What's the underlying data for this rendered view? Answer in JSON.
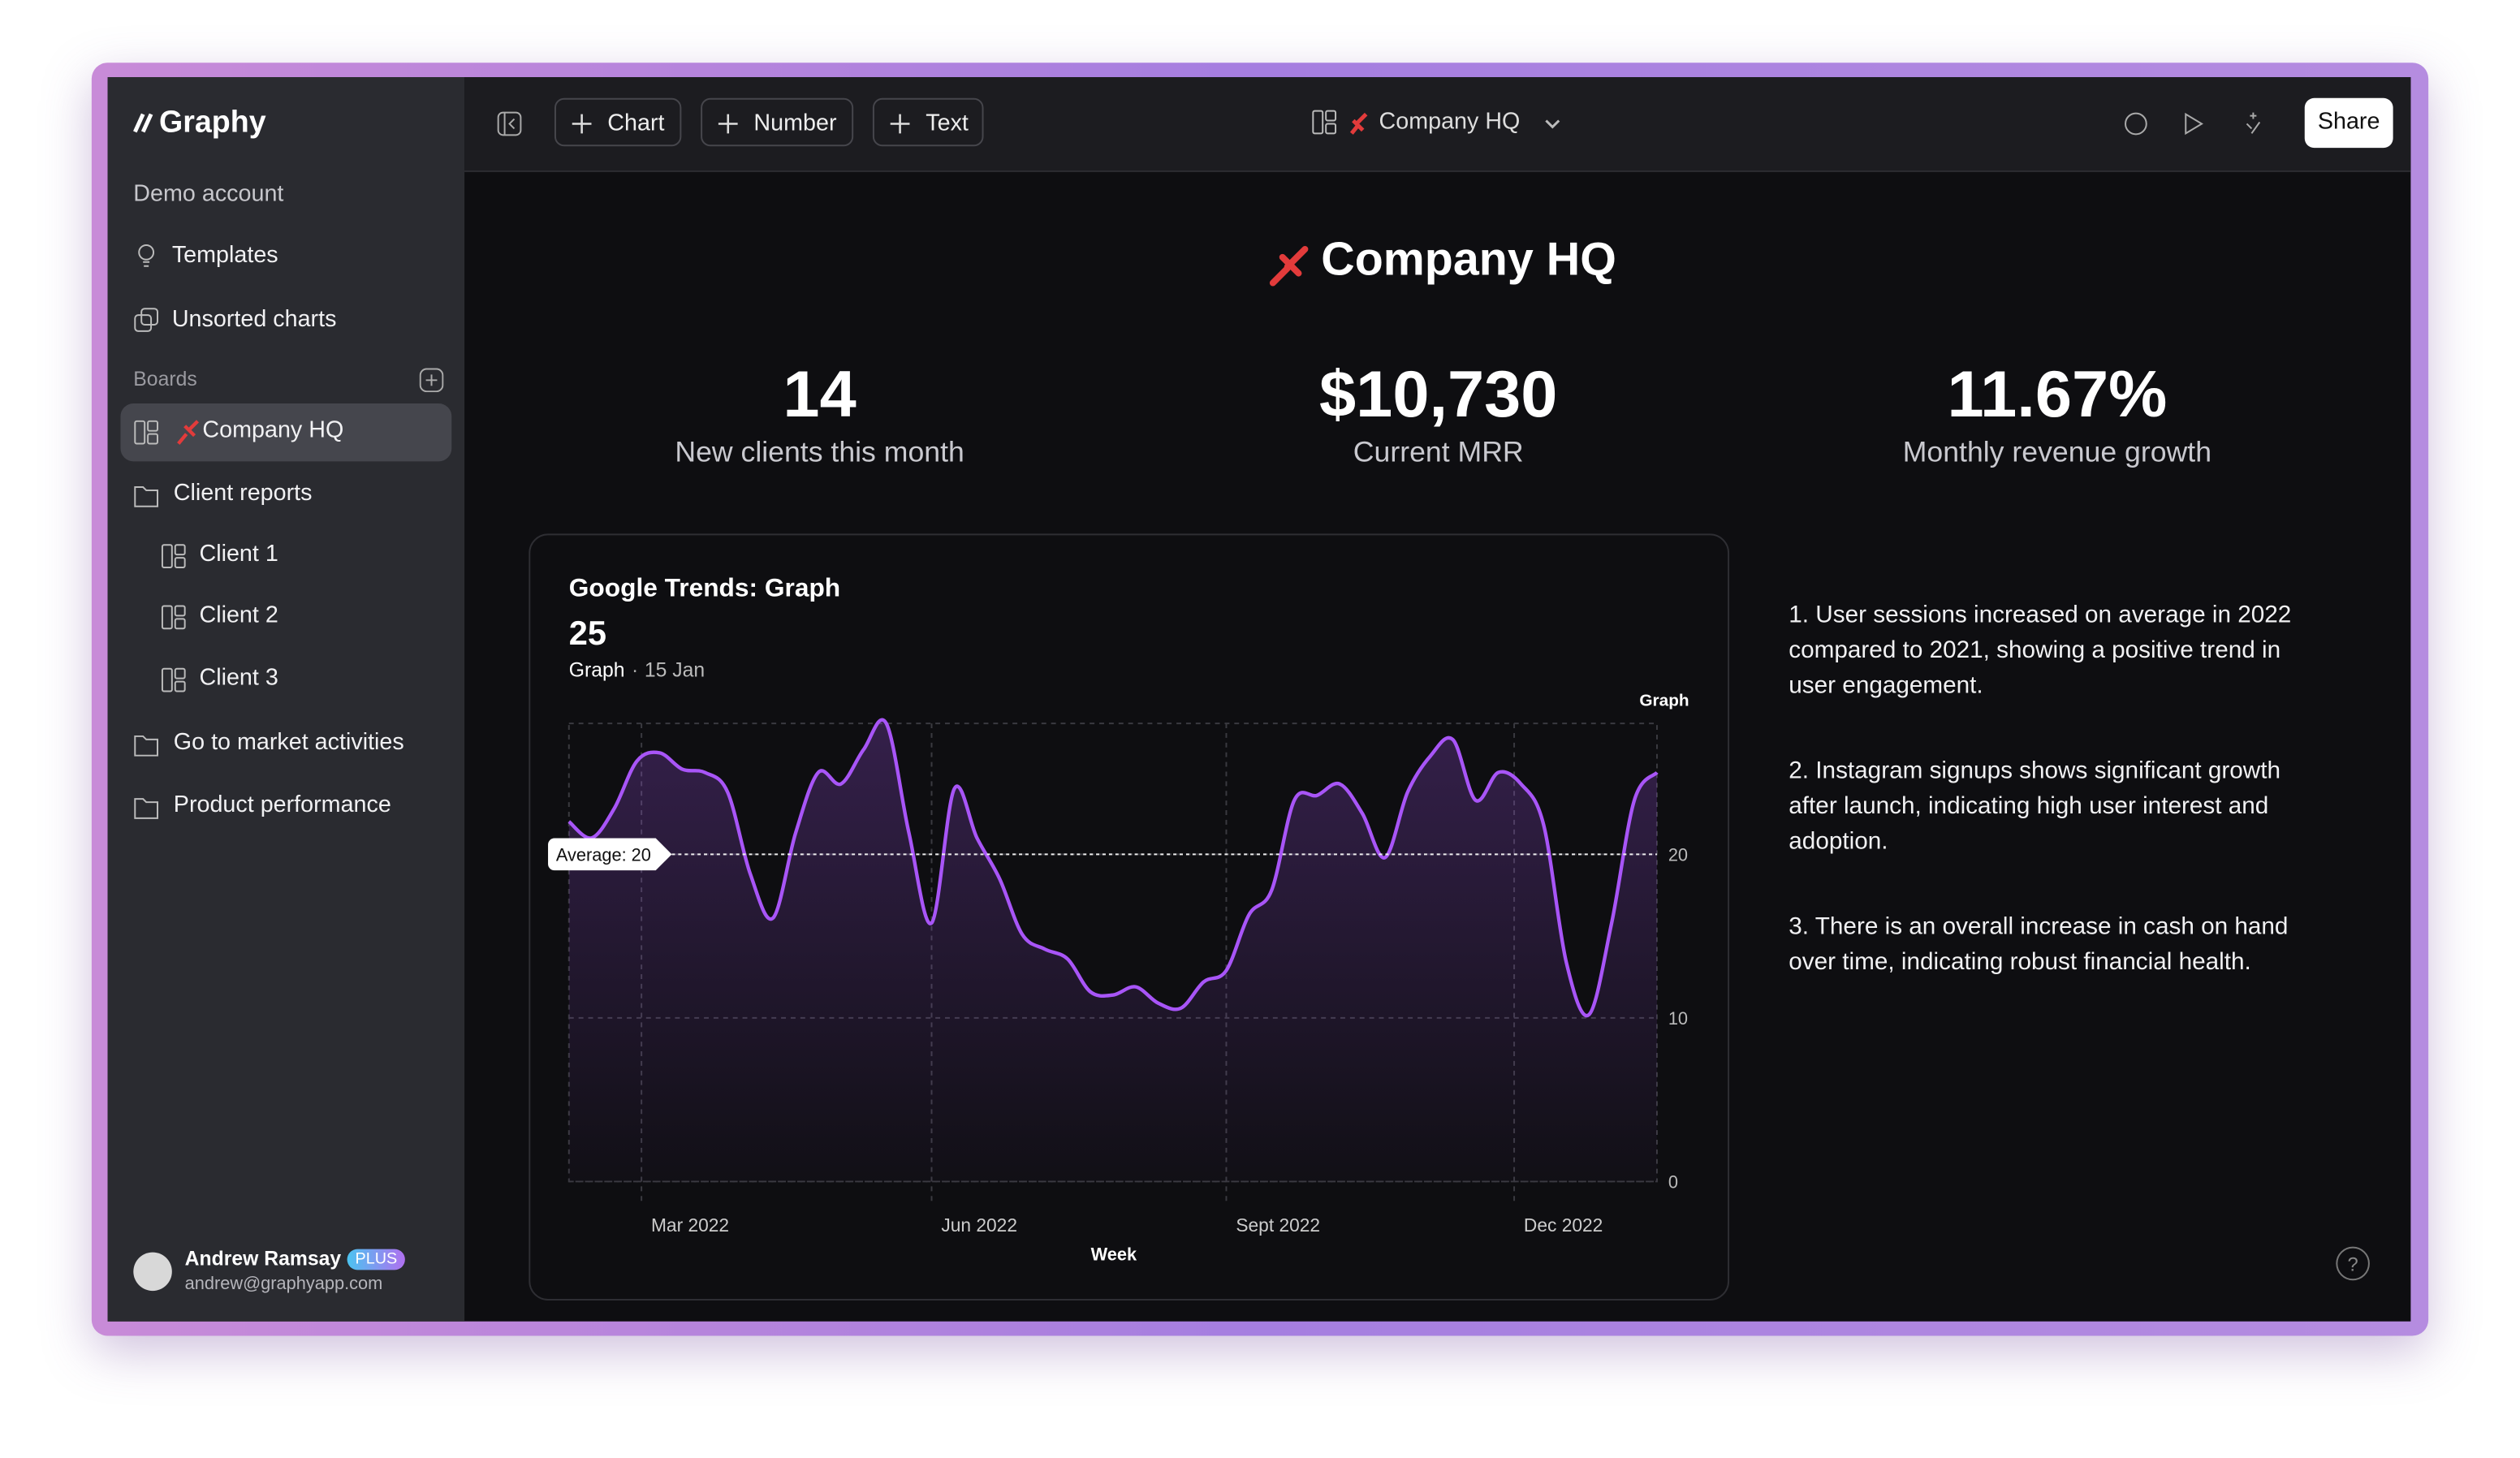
{
  "sidebar": {
    "logo": "Graphy",
    "account": "Demo account",
    "nav": [
      "Templates",
      "Unsorted charts"
    ],
    "boards_label": "Boards",
    "boards": [
      "Company HQ",
      "Client reports",
      "Client 1",
      "Client 2",
      "Client 3",
      "Go to market activities",
      "Product performance"
    ],
    "user": {
      "name": "Andrew Ramsay",
      "badge": "PLUS",
      "email": "andrew@graphyapp.com"
    }
  },
  "toolbar": {
    "buttons": [
      "Chart",
      "Number",
      "Text"
    ],
    "board": "Company HQ",
    "share": "Share"
  },
  "dashboard": {
    "title": "Company HQ",
    "metrics": [
      {
        "value": "14",
        "label": "New clients this month"
      },
      {
        "value": "$10,730",
        "label": "Current MRR"
      },
      {
        "value": "11.67%",
        "label": "Monthly revenue growth"
      }
    ],
    "notes": [
      "1. User sessions increased on average in 2022 compared to 2021, showing a positive trend in user engagement.",
      "2. Instagram signups shows significant growth after launch, indicating high user interest and adoption.",
      "3. There is an overall increase in cash on hand over time, indicating robust financial health."
    ]
  },
  "chart_data": {
    "type": "line",
    "title": "Google Trends: Graph",
    "value": 25,
    "value_series": "Graph",
    "date": "15 Jan",
    "x": [
      0,
      1,
      2,
      3,
      4,
      5,
      6,
      7,
      8,
      9,
      10,
      11,
      12,
      13,
      14,
      15,
      16,
      17,
      18,
      19,
      20,
      21,
      22,
      23,
      24,
      25,
      26,
      27,
      28,
      29,
      30,
      31,
      32,
      33,
      34,
      35,
      36,
      37,
      38,
      39,
      40,
      41,
      42,
      43,
      44,
      45,
      46,
      47,
      48
    ],
    "series": [
      {
        "name": "Graph",
        "color": "#a855f7",
        "values": [
          22,
          21,
          22.8,
          25.7,
          26.2,
          25.2,
          25,
          23.8,
          18.8,
          16.1,
          21.3,
          25,
          24.3,
          26.4,
          28,
          21.3,
          15.8,
          24,
          21,
          18.5,
          15.1,
          14.2,
          13.6,
          11.6,
          11.4,
          11.9,
          10.9,
          10.6,
          12.2,
          12.9,
          16.3,
          17.8,
          23.3,
          23.6,
          24.3,
          22.5,
          19.8,
          23.8,
          26,
          27,
          23.3,
          25,
          24.3,
          21.8,
          13.4,
          10.2,
          15.8,
          23.3,
          25
        ]
      }
    ],
    "xlim": [
      0,
      48
    ],
    "xticks": [
      {
        "value": 3.2,
        "label": "Mar 2022"
      },
      {
        "value": 16,
        "label": "Jun 2022"
      },
      {
        "value": 29,
        "label": "Sept 2022"
      },
      {
        "value": 41.7,
        "label": "Dec 2022"
      }
    ],
    "xlabel": "Week",
    "ylim": [
      0,
      28
    ],
    "yticks": [
      0,
      10,
      20
    ],
    "grid": true,
    "average": {
      "value": 20,
      "label": "Average: 20"
    }
  }
}
